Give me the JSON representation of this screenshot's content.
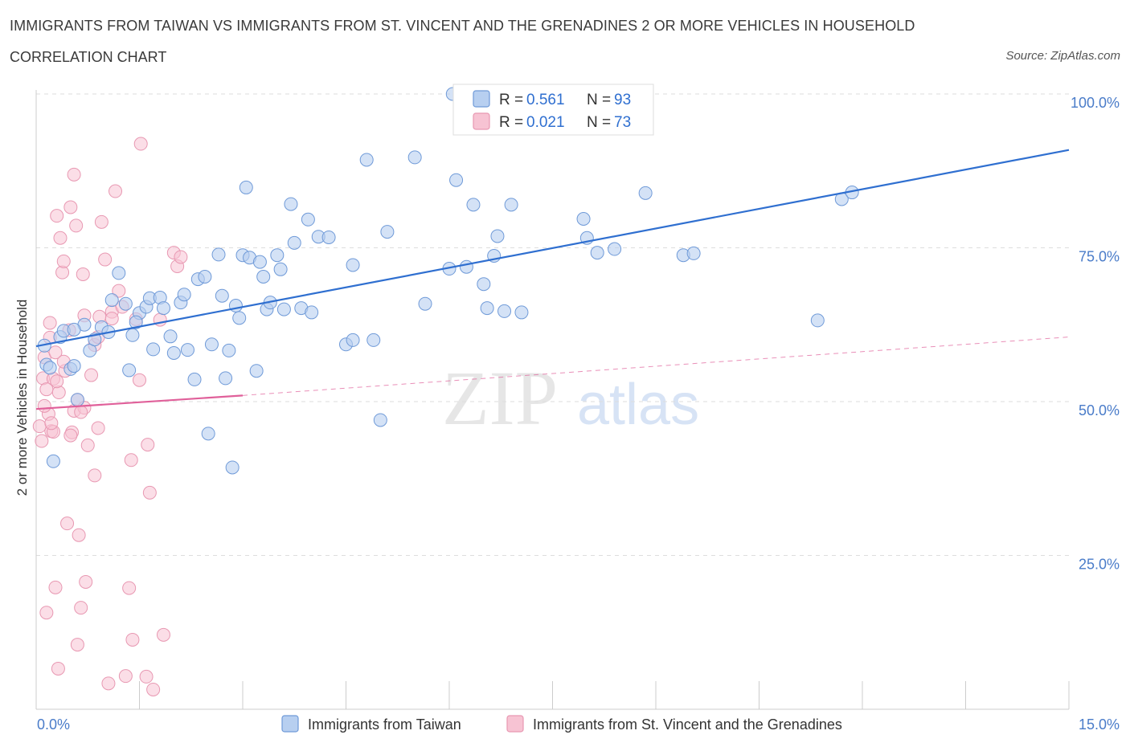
{
  "header": {
    "title": "IMMIGRANTS FROM TAIWAN VS IMMIGRANTS FROM ST. VINCENT AND THE GRENADINES 2 OR MORE VEHICLES IN HOUSEHOLD",
    "subtitle": "CORRELATION CHART",
    "source": "Source: ZipAtlas.com"
  },
  "watermark": {
    "zip": "ZIP",
    "atlas": "atlas"
  },
  "legend_box": {
    "rows": [
      {
        "r_label": "R = ",
        "r_value": "0.561",
        "n_label": "N = ",
        "n_value": "93"
      },
      {
        "r_label": "R = ",
        "r_value": "0.021",
        "n_label": "N = ",
        "n_value": "73"
      }
    ]
  },
  "colors": {
    "taiwan_fill": "#b7cff0",
    "taiwan_stroke": "#6f9ad8",
    "taiwan_line": "#2f6fd0",
    "svg_fill": "#f7c3d3",
    "svg_stroke": "#e898b2",
    "svg_line": "#e0609a",
    "grid": "#dddddd",
    "axis_text": "#4a7cc9"
  },
  "chart_data": {
    "type": "scatter",
    "title": "IMMIGRANTS FROM TAIWAN VS IMMIGRANTS FROM ST. VINCENT AND THE GRENADINES 2 OR MORE VEHICLES IN HOUSEHOLD",
    "ylabel": "2 or more Vehicles in Household",
    "xlabel": "",
    "xlim": [
      0,
      15
    ],
    "ylim": [
      0,
      100
    ],
    "x_tick_labels": [
      "0.0%",
      "15.0%"
    ],
    "y_tick_labels": [
      "100.0%",
      "75.0%",
      "50.0%",
      "25.0%"
    ],
    "y_ticks": [
      100,
      75,
      50,
      25
    ],
    "grid": true,
    "legend": "bottom-center",
    "series": [
      {
        "name": "Immigrants from Taiwan",
        "R": 0.561,
        "N": 93,
        "trend": {
          "x": [
            0,
            15
          ],
          "y": [
            59.0,
            90.9
          ]
        },
        "points": [
          [
            0.12,
            59.1
          ],
          [
            0.15,
            56.0
          ],
          [
            0.2,
            55.5
          ],
          [
            0.25,
            40.3
          ],
          [
            0.35,
            60.5
          ],
          [
            0.4,
            61.5
          ],
          [
            0.5,
            55.3
          ],
          [
            0.55,
            55.8
          ],
          [
            0.6,
            50.3
          ],
          [
            0.7,
            62.5
          ],
          [
            0.78,
            58.3
          ],
          [
            0.85,
            60.1
          ],
          [
            0.95,
            62.1
          ],
          [
            1.05,
            61.3
          ],
          [
            1.1,
            66.5
          ],
          [
            1.2,
            70.9
          ],
          [
            1.3,
            65.9
          ],
          [
            1.35,
            55.1
          ],
          [
            1.4,
            60.8
          ],
          [
            1.5,
            64.4
          ],
          [
            1.6,
            65.4
          ],
          [
            1.65,
            66.8
          ],
          [
            1.7,
            58.5
          ],
          [
            1.8,
            66.9
          ],
          [
            1.85,
            65.2
          ],
          [
            1.95,
            60.6
          ],
          [
            2.0,
            57.9
          ],
          [
            2.1,
            66.1
          ],
          [
            2.15,
            67.4
          ],
          [
            2.2,
            58.4
          ],
          [
            2.3,
            53.6
          ],
          [
            2.35,
            69.9
          ],
          [
            2.45,
            70.3
          ],
          [
            2.5,
            44.8
          ],
          [
            2.55,
            59.3
          ],
          [
            2.65,
            73.9
          ],
          [
            2.7,
            67.2
          ],
          [
            2.75,
            53.8
          ],
          [
            2.8,
            58.3
          ],
          [
            2.9,
            65.6
          ],
          [
            2.95,
            63.6
          ],
          [
            3.0,
            73.8
          ],
          [
            3.05,
            84.8
          ],
          [
            3.1,
            73.4
          ],
          [
            3.2,
            55.0
          ],
          [
            3.3,
            70.3
          ],
          [
            3.35,
            65.0
          ],
          [
            3.4,
            66.1
          ],
          [
            3.5,
            73.8
          ],
          [
            3.55,
            71.5
          ],
          [
            3.6,
            65.0
          ],
          [
            3.7,
            82.1
          ],
          [
            3.75,
            75.8
          ],
          [
            3.85,
            65.2
          ],
          [
            3.95,
            79.6
          ],
          [
            4.1,
            76.8
          ],
          [
            4.25,
            76.7
          ],
          [
            4.5,
            59.3
          ],
          [
            4.6,
            60.0
          ],
          [
            4.6,
            72.2
          ],
          [
            4.8,
            89.3
          ],
          [
            4.9,
            60.0
          ],
          [
            5.0,
            47.0
          ],
          [
            5.1,
            77.6
          ],
          [
            5.5,
            89.7
          ],
          [
            5.65,
            65.9
          ],
          [
            6.0,
            71.6
          ],
          [
            6.1,
            86.0
          ],
          [
            6.25,
            71.9
          ],
          [
            6.35,
            82.0
          ],
          [
            6.5,
            69.1
          ],
          [
            6.55,
            65.2
          ],
          [
            6.65,
            73.7
          ],
          [
            6.7,
            76.9
          ],
          [
            6.8,
            64.7
          ],
          [
            6.9,
            82.0
          ],
          [
            7.05,
            64.5
          ],
          [
            7.95,
            79.7
          ],
          [
            8.0,
            76.6
          ],
          [
            8.15,
            74.2
          ],
          [
            8.4,
            74.8
          ],
          [
            8.85,
            83.9
          ],
          [
            9.4,
            73.8
          ],
          [
            9.55,
            74.1
          ],
          [
            11.35,
            63.2
          ],
          [
            11.7,
            82.9
          ],
          [
            11.85,
            84.0
          ],
          [
            6.05,
            100.0
          ],
          [
            2.85,
            39.3
          ],
          [
            0.55,
            61.7
          ],
          [
            1.45,
            62.9
          ],
          [
            3.25,
            72.7
          ],
          [
            4.0,
            64.5
          ]
        ]
      },
      {
        "name": "Immigrants from St. Vincent and the Grenadines",
        "R": 0.021,
        "N": 73,
        "trend": {
          "x": [
            0,
            3.0
          ],
          "y": [
            48.8,
            51.0
          ],
          "dashed_to": {
            "x": 15,
            "y": 60.5
          }
        },
        "points": [
          [
            0.05,
            46.0
          ],
          [
            0.08,
            43.6
          ],
          [
            0.1,
            53.8
          ],
          [
            0.12,
            57.2
          ],
          [
            0.15,
            15.7
          ],
          [
            0.2,
            62.8
          ],
          [
            0.22,
            45.2
          ],
          [
            0.25,
            53.7
          ],
          [
            0.28,
            19.8
          ],
          [
            0.3,
            80.2
          ],
          [
            0.32,
            6.6
          ],
          [
            0.35,
            76.6
          ],
          [
            0.38,
            71.0
          ],
          [
            0.4,
            72.8
          ],
          [
            0.45,
            30.2
          ],
          [
            0.48,
            61.6
          ],
          [
            0.5,
            81.6
          ],
          [
            0.52,
            45.0
          ],
          [
            0.55,
            86.9
          ],
          [
            0.58,
            78.6
          ],
          [
            0.6,
            10.5
          ],
          [
            0.62,
            28.3
          ],
          [
            0.65,
            16.5
          ],
          [
            0.68,
            70.7
          ],
          [
            0.7,
            64.0
          ],
          [
            0.72,
            20.7
          ],
          [
            0.75,
            42.9
          ],
          [
            0.8,
            54.3
          ],
          [
            0.85,
            38.0
          ],
          [
            0.9,
            45.7
          ],
          [
            0.92,
            63.8
          ],
          [
            0.95,
            79.2
          ],
          [
            1.0,
            73.1
          ],
          [
            1.05,
            4.2
          ],
          [
            1.1,
            64.6
          ],
          [
            1.15,
            84.2
          ],
          [
            1.2,
            68.0
          ],
          [
            1.25,
            65.4
          ],
          [
            1.3,
            5.4
          ],
          [
            1.35,
            19.7
          ],
          [
            1.38,
            40.5
          ],
          [
            1.4,
            11.3
          ],
          [
            1.45,
            63.4
          ],
          [
            1.5,
            53.5
          ],
          [
            1.52,
            91.9
          ],
          [
            1.6,
            5.3
          ],
          [
            1.62,
            43.0
          ],
          [
            1.65,
            35.2
          ],
          [
            1.7,
            3.2
          ],
          [
            1.8,
            63.3
          ],
          [
            1.85,
            12.1
          ],
          [
            2.0,
            74.2
          ],
          [
            2.05,
            72.0
          ],
          [
            0.18,
            48.0
          ],
          [
            0.28,
            58.0
          ],
          [
            0.42,
            55.0
          ],
          [
            0.55,
            48.5
          ],
          [
            0.33,
            51.5
          ],
          [
            0.15,
            52.0
          ],
          [
            0.6,
            50.3
          ],
          [
            0.5,
            44.5
          ],
          [
            0.25,
            45.1
          ],
          [
            0.7,
            49.0
          ],
          [
            1.1,
            63.5
          ],
          [
            0.4,
            56.5
          ],
          [
            0.3,
            53.3
          ],
          [
            0.65,
            48.3
          ],
          [
            0.85,
            59.2
          ],
          [
            0.9,
            60.5
          ],
          [
            0.22,
            46.5
          ],
          [
            0.12,
            49.3
          ],
          [
            0.2,
            60.4
          ],
          [
            2.1,
            73.5
          ]
        ]
      }
    ]
  },
  "bottom_legend": [
    {
      "label": "Immigrants from Taiwan"
    },
    {
      "label": "Immigrants from St. Vincent and the Grenadines"
    }
  ]
}
